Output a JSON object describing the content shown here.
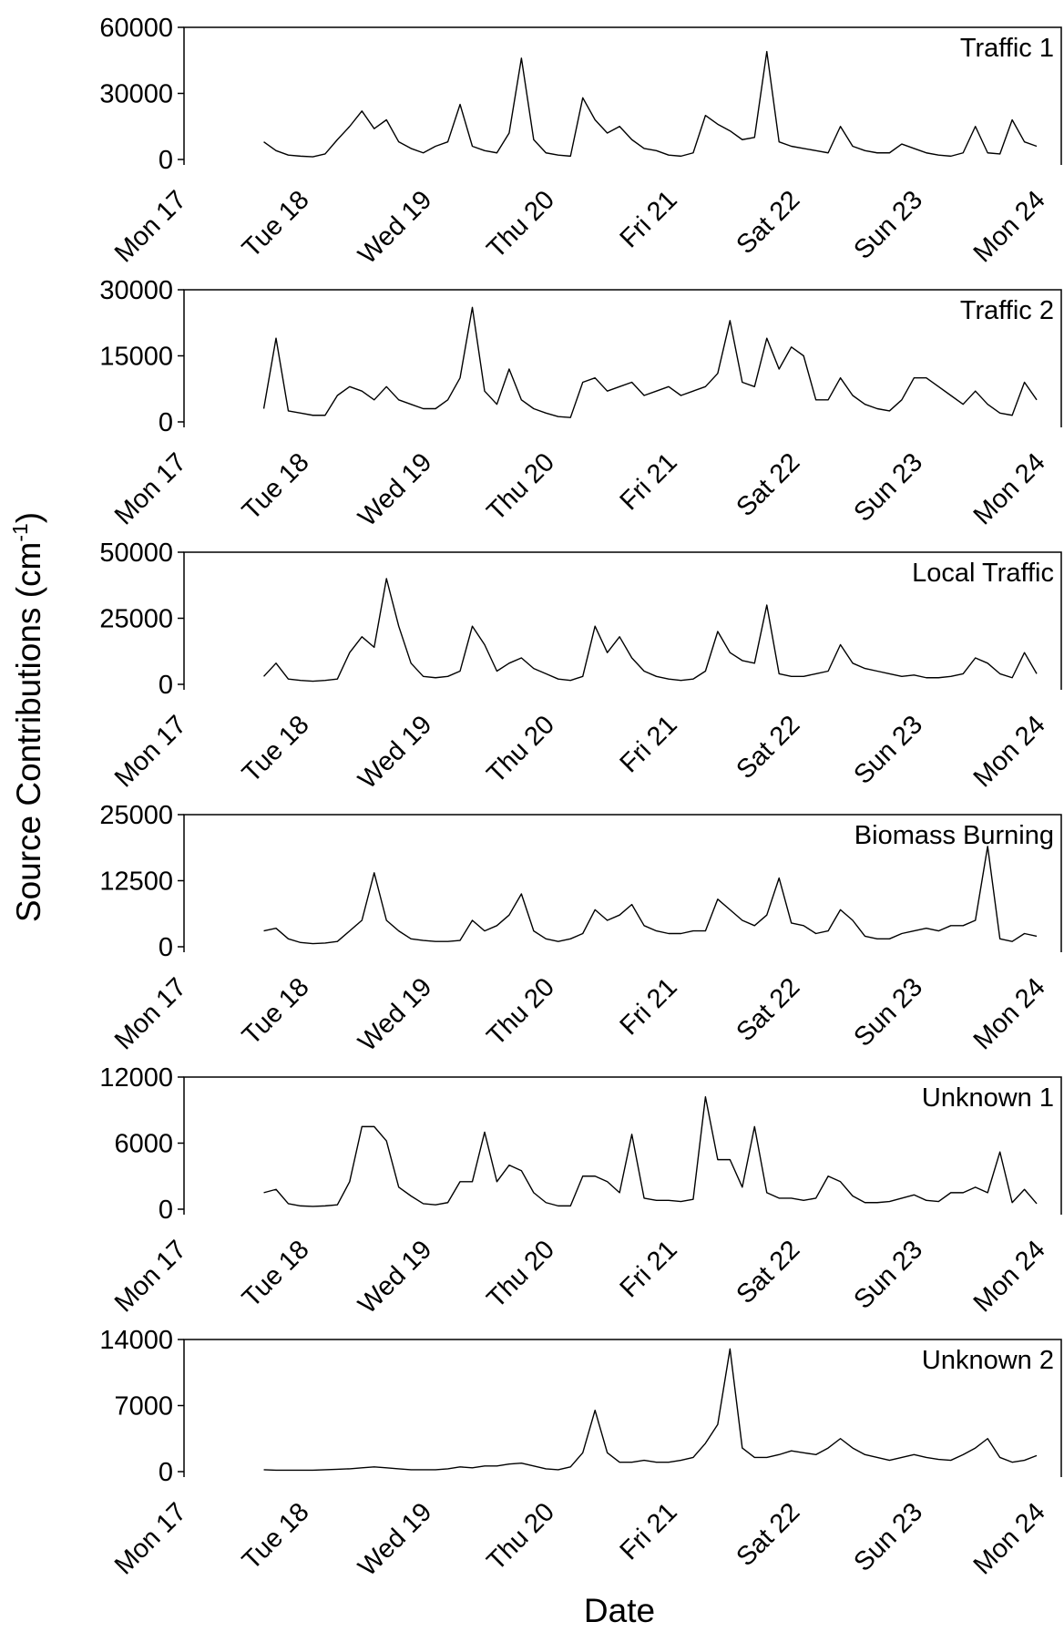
{
  "figure": {
    "ylabel": [
      "Source Contributions (cm",
      "-1",
      ")"
    ],
    "xlabel": "Date"
  },
  "chart_data": [
    {
      "type": "line",
      "title": "Traffic 1",
      "color": "#000000",
      "x": [
        17.65,
        17.75,
        17.85,
        17.95,
        18.05,
        18.15,
        18.25,
        18.35,
        18.45,
        18.55,
        18.65,
        18.75,
        18.85,
        18.95,
        19.05,
        19.15,
        19.25,
        19.35,
        19.45,
        19.55,
        19.65,
        19.75,
        19.85,
        19.95,
        20.05,
        20.15,
        20.25,
        20.35,
        20.45,
        20.55,
        20.65,
        20.75,
        20.85,
        20.95,
        21.05,
        21.15,
        21.25,
        21.35,
        21.45,
        21.55,
        21.65,
        21.75,
        21.85,
        21.95,
        22.05,
        22.15,
        22.25,
        22.35,
        22.45,
        22.55,
        22.65,
        22.75,
        22.85,
        22.95,
        23.05,
        23.15,
        23.25,
        23.35,
        23.45,
        23.55,
        23.65,
        23.75,
        23.85,
        23.95
      ],
      "values": [
        8000,
        4000,
        2000,
        1500,
        1200,
        2500,
        9000,
        15000,
        22000,
        14000,
        18000,
        8000,
        5000,
        3000,
        6000,
        8000,
        25000,
        6000,
        4000,
        3000,
        12000,
        46000,
        9000,
        3000,
        2000,
        1500,
        28000,
        18000,
        12000,
        15000,
        9000,
        5000,
        4000,
        2000,
        1500,
        3000,
        20000,
        16000,
        13000,
        9000,
        10000,
        49000,
        8000,
        6000,
        5000,
        4000,
        3000,
        15000,
        6000,
        4000,
        3000,
        3000,
        7000,
        5000,
        3000,
        2000,
        1500,
        3000,
        15000,
        3000,
        2500,
        18000,
        8000,
        6000
      ],
      "xlim": [
        17,
        24.15
      ],
      "ylim": [
        0,
        60000
      ],
      "yticks": [
        0,
        30000,
        60000
      ],
      "xticks": [
        {
          "value": 17,
          "label": "Mon 17"
        },
        {
          "value": 18,
          "label": "Tue 18"
        },
        {
          "value": 19,
          "label": "Wed 19"
        },
        {
          "value": 20,
          "label": "Thu 20"
        },
        {
          "value": 21,
          "label": "Fri 21"
        },
        {
          "value": 22,
          "label": "Sat 22"
        },
        {
          "value": 23,
          "label": "Sun 23"
        },
        {
          "value": 24,
          "label": "Mon 24"
        }
      ]
    },
    {
      "type": "line",
      "title": "Traffic 2",
      "color": "#000000",
      "x": [
        17.65,
        17.75,
        17.85,
        17.95,
        18.05,
        18.15,
        18.25,
        18.35,
        18.45,
        18.55,
        18.65,
        18.75,
        18.85,
        18.95,
        19.05,
        19.15,
        19.25,
        19.35,
        19.45,
        19.55,
        19.65,
        19.75,
        19.85,
        19.95,
        20.05,
        20.15,
        20.25,
        20.35,
        20.45,
        20.55,
        20.65,
        20.75,
        20.85,
        20.95,
        21.05,
        21.15,
        21.25,
        21.35,
        21.45,
        21.55,
        21.65,
        21.75,
        21.85,
        21.95,
        22.05,
        22.15,
        22.25,
        22.35,
        22.45,
        22.55,
        22.65,
        22.75,
        22.85,
        22.95,
        23.05,
        23.15,
        23.25,
        23.35,
        23.45,
        23.55,
        23.65,
        23.75,
        23.85,
        23.95
      ],
      "values": [
        3000,
        19000,
        2500,
        2000,
        1500,
        1500,
        6000,
        8000,
        7000,
        5000,
        8000,
        5000,
        4000,
        3000,
        3000,
        5000,
        10000,
        26000,
        7000,
        4000,
        12000,
        5000,
        3000,
        2000,
        1200,
        1000,
        9000,
        10000,
        7000,
        8000,
        9000,
        6000,
        7000,
        8000,
        6000,
        7000,
        8000,
        11000,
        23000,
        9000,
        8000,
        19000,
        12000,
        17000,
        15000,
        5000,
        5000,
        10000,
        6000,
        4000,
        3000,
        2500,
        5000,
        10000,
        10000,
        8000,
        6000,
        4000,
        7000,
        4000,
        2000,
        1500,
        9000,
        5000
      ],
      "xlim": [
        17,
        24.15
      ],
      "ylim": [
        0,
        30000
      ],
      "yticks": [
        0,
        15000,
        30000
      ],
      "xticks": [
        {
          "value": 17,
          "label": "Mon 17"
        },
        {
          "value": 18,
          "label": "Tue 18"
        },
        {
          "value": 19,
          "label": "Wed 19"
        },
        {
          "value": 20,
          "label": "Thu 20"
        },
        {
          "value": 21,
          "label": "Fri 21"
        },
        {
          "value": 22,
          "label": "Sat 22"
        },
        {
          "value": 23,
          "label": "Sun 23"
        },
        {
          "value": 24,
          "label": "Mon 24"
        }
      ]
    },
    {
      "type": "line",
      "title": "Local Traffic",
      "color": "#000000",
      "x": [
        17.65,
        17.75,
        17.85,
        17.95,
        18.05,
        18.15,
        18.25,
        18.35,
        18.45,
        18.55,
        18.65,
        18.75,
        18.85,
        18.95,
        19.05,
        19.15,
        19.25,
        19.35,
        19.45,
        19.55,
        19.65,
        19.75,
        19.85,
        19.95,
        20.05,
        20.15,
        20.25,
        20.35,
        20.45,
        20.55,
        20.65,
        20.75,
        20.85,
        20.95,
        21.05,
        21.15,
        21.25,
        21.35,
        21.45,
        21.55,
        21.65,
        21.75,
        21.85,
        21.95,
        22.05,
        22.15,
        22.25,
        22.35,
        22.45,
        22.55,
        22.65,
        22.75,
        22.85,
        22.95,
        23.05,
        23.15,
        23.25,
        23.35,
        23.45,
        23.55,
        23.65,
        23.75,
        23.85,
        23.95
      ],
      "values": [
        3000,
        8000,
        2000,
        1500,
        1200,
        1500,
        2000,
        12000,
        18000,
        14000,
        40000,
        22000,
        8000,
        3000,
        2500,
        3000,
        5000,
        22000,
        15000,
        5000,
        8000,
        10000,
        6000,
        4000,
        2000,
        1500,
        3000,
        22000,
        12000,
        18000,
        10000,
        5000,
        3000,
        2000,
        1500,
        2000,
        5000,
        20000,
        12000,
        9000,
        8000,
        30000,
        4000,
        3000,
        3000,
        4000,
        5000,
        15000,
        8000,
        6000,
        5000,
        4000,
        3000,
        3500,
        2500,
        2500,
        3000,
        4000,
        10000,
        8000,
        4000,
        2500,
        12000,
        4000
      ],
      "xlim": [
        17,
        24.15
      ],
      "ylim": [
        0,
        50000
      ],
      "yticks": [
        0,
        25000,
        50000
      ],
      "xticks": [
        {
          "value": 17,
          "label": "Mon 17"
        },
        {
          "value": 18,
          "label": "Tue 18"
        },
        {
          "value": 19,
          "label": "Wed 19"
        },
        {
          "value": 20,
          "label": "Thu 20"
        },
        {
          "value": 21,
          "label": "Fri 21"
        },
        {
          "value": 22,
          "label": "Sat 22"
        },
        {
          "value": 23,
          "label": "Sun 23"
        },
        {
          "value": 24,
          "label": "Mon 24"
        }
      ]
    },
    {
      "type": "line",
      "title": "Biomass Burning",
      "color": "#000000",
      "x": [
        17.65,
        17.75,
        17.85,
        17.95,
        18.05,
        18.15,
        18.25,
        18.35,
        18.45,
        18.55,
        18.65,
        18.75,
        18.85,
        18.95,
        19.05,
        19.15,
        19.25,
        19.35,
        19.45,
        19.55,
        19.65,
        19.75,
        19.85,
        19.95,
        20.05,
        20.15,
        20.25,
        20.35,
        20.45,
        20.55,
        20.65,
        20.75,
        20.85,
        20.95,
        21.05,
        21.15,
        21.25,
        21.35,
        21.45,
        21.55,
        21.65,
        21.75,
        21.85,
        21.95,
        22.05,
        22.15,
        22.25,
        22.35,
        22.45,
        22.55,
        22.65,
        22.75,
        22.85,
        22.95,
        23.05,
        23.15,
        23.25,
        23.35,
        23.45,
        23.55,
        23.65,
        23.75,
        23.85,
        23.95
      ],
      "values": [
        3000,
        3500,
        1500,
        800,
        600,
        700,
        1000,
        3000,
        5000,
        14000,
        5000,
        3000,
        1500,
        1200,
        1000,
        1000,
        1200,
        5000,
        3000,
        4000,
        6000,
        10000,
        3000,
        1500,
        1000,
        1500,
        2500,
        7000,
        5000,
        6000,
        8000,
        4000,
        3000,
        2500,
        2500,
        3000,
        3000,
        9000,
        7000,
        5000,
        4000,
        6000,
        13000,
        4500,
        4000,
        2500,
        3000,
        7000,
        5000,
        2000,
        1500,
        1500,
        2500,
        3000,
        3500,
        3000,
        4000,
        4000,
        5000,
        19000,
        1500,
        1000,
        2500,
        2000
      ],
      "xlim": [
        17,
        24.15
      ],
      "ylim": [
        0,
        25000
      ],
      "yticks": [
        0,
        12500,
        25000
      ],
      "xticks": [
        {
          "value": 17,
          "label": "Mon 17"
        },
        {
          "value": 18,
          "label": "Tue 18"
        },
        {
          "value": 19,
          "label": "Wed 19"
        },
        {
          "value": 20,
          "label": "Thu 20"
        },
        {
          "value": 21,
          "label": "Fri 21"
        },
        {
          "value": 22,
          "label": "Sat 22"
        },
        {
          "value": 23,
          "label": "Sun 23"
        },
        {
          "value": 24,
          "label": "Mon 24"
        }
      ]
    },
    {
      "type": "line",
      "title": "Unknown 1",
      "color": "#000000",
      "x": [
        17.65,
        17.75,
        17.85,
        17.95,
        18.05,
        18.15,
        18.25,
        18.35,
        18.45,
        18.55,
        18.65,
        18.75,
        18.85,
        18.95,
        19.05,
        19.15,
        19.25,
        19.35,
        19.45,
        19.55,
        19.65,
        19.75,
        19.85,
        19.95,
        20.05,
        20.15,
        20.25,
        20.35,
        20.45,
        20.55,
        20.65,
        20.75,
        20.85,
        20.95,
        21.05,
        21.15,
        21.25,
        21.35,
        21.45,
        21.55,
        21.65,
        21.75,
        21.85,
        21.95,
        22.05,
        22.15,
        22.25,
        22.35,
        22.45,
        22.55,
        22.65,
        22.75,
        22.85,
        22.95,
        23.05,
        23.15,
        23.25,
        23.35,
        23.45,
        23.55,
        23.65,
        23.75,
        23.85,
        23.95
      ],
      "values": [
        1500,
        1800,
        500,
        300,
        250,
        300,
        400,
        2500,
        7500,
        7500,
        6200,
        2000,
        1200,
        500,
        400,
        600,
        2500,
        2500,
        7000,
        2500,
        4000,
        3500,
        1500,
        600,
        300,
        300,
        3000,
        3000,
        2500,
        1500,
        6800,
        1000,
        800,
        800,
        700,
        900,
        10200,
        4500,
        4500,
        2000,
        7500,
        1500,
        1000,
        1000,
        800,
        1000,
        3000,
        2500,
        1200,
        600,
        600,
        700,
        1000,
        1300,
        800,
        700,
        1500,
        1500,
        2000,
        1500,
        5200,
        600,
        1800,
        500
      ],
      "xlim": [
        17,
        24.15
      ],
      "ylim": [
        0,
        12000
      ],
      "yticks": [
        0,
        6000,
        12000
      ],
      "xticks": [
        {
          "value": 17,
          "label": "Mon 17"
        },
        {
          "value": 18,
          "label": "Tue 18"
        },
        {
          "value": 19,
          "label": "Wed 19"
        },
        {
          "value": 20,
          "label": "Thu 20"
        },
        {
          "value": 21,
          "label": "Fri 21"
        },
        {
          "value": 22,
          "label": "Sat 22"
        },
        {
          "value": 23,
          "label": "Sun 23"
        },
        {
          "value": 24,
          "label": "Mon 24"
        }
      ]
    },
    {
      "type": "line",
      "title": "Unknown 2",
      "color": "#000000",
      "x": [
        17.65,
        17.75,
        17.85,
        17.95,
        18.05,
        18.15,
        18.25,
        18.35,
        18.45,
        18.55,
        18.65,
        18.75,
        18.85,
        18.95,
        19.05,
        19.15,
        19.25,
        19.35,
        19.45,
        19.55,
        19.65,
        19.75,
        19.85,
        19.95,
        20.05,
        20.15,
        20.25,
        20.35,
        20.45,
        20.55,
        20.65,
        20.75,
        20.85,
        20.95,
        21.05,
        21.15,
        21.25,
        21.35,
        21.45,
        21.55,
        21.65,
        21.75,
        21.85,
        21.95,
        22.05,
        22.15,
        22.25,
        22.35,
        22.45,
        22.55,
        22.65,
        22.75,
        22.85,
        22.95,
        23.05,
        23.15,
        23.25,
        23.35,
        23.45,
        23.55,
        23.65,
        23.75,
        23.85,
        23.95
      ],
      "values": [
        200,
        150,
        150,
        150,
        150,
        200,
        250,
        300,
        400,
        500,
        400,
        300,
        200,
        200,
        200,
        300,
        500,
        400,
        600,
        600,
        800,
        900,
        600,
        300,
        200,
        500,
        2000,
        6500,
        2000,
        1000,
        1000,
        1200,
        1000,
        1000,
        1200,
        1500,
        3000,
        5000,
        13000,
        2500,
        1500,
        1500,
        1800,
        2200,
        2000,
        1800,
        2500,
        3500,
        2500,
        1800,
        1500,
        1200,
        1500,
        1800,
        1500,
        1300,
        1200,
        1800,
        2500,
        3500,
        1500,
        1000,
        1200,
        1700
      ],
      "xlim": [
        17,
        24.15
      ],
      "ylim": [
        0,
        14000
      ],
      "yticks": [
        0,
        7000,
        14000
      ],
      "xticks": [
        {
          "value": 17,
          "label": "Mon 17"
        },
        {
          "value": 18,
          "label": "Tue 18"
        },
        {
          "value": 19,
          "label": "Wed 19"
        },
        {
          "value": 20,
          "label": "Thu 20"
        },
        {
          "value": 21,
          "label": "Fri 21"
        },
        {
          "value": 22,
          "label": "Sat 22"
        },
        {
          "value": 23,
          "label": "Sun 23"
        },
        {
          "value": 24,
          "label": "Mon 24"
        }
      ]
    }
  ]
}
